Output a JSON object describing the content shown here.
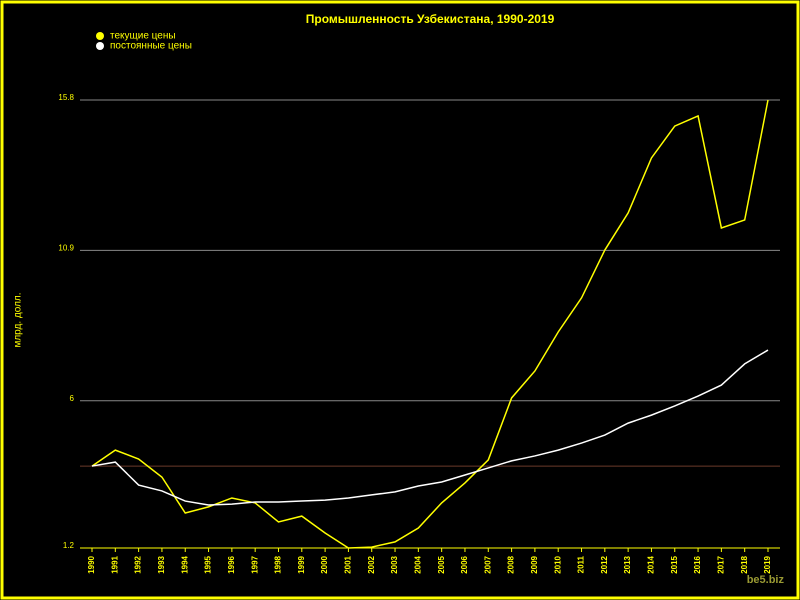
{
  "chart_data": {
    "type": "line",
    "title": "Промышленность Узбекистана, 1990-2019",
    "y_label": "млрд. долл.",
    "watermark": "be5.biz",
    "categories": [
      "1990",
      "1991",
      "1992",
      "1993",
      "1994",
      "1995",
      "1996",
      "1997",
      "1998",
      "1999",
      "2000",
      "2001",
      "2002",
      "2003",
      "2004",
      "2005",
      "2006",
      "2007",
      "2008",
      "2009",
      "2010",
      "2011",
      "2012",
      "2013",
      "2014",
      "2015",
      "2016",
      "2017",
      "2018",
      "2019"
    ],
    "series": [
      {
        "name": "текущие цены",
        "color": "#ffff00",
        "values": [
          3.87,
          4.39,
          4.1,
          3.51,
          2.34,
          2.54,
          2.83,
          2.67,
          2.05,
          2.24,
          1.69,
          1.2,
          1.23,
          1.4,
          1.85,
          2.67,
          3.32,
          4.07,
          6.09,
          6.97,
          8.24,
          9.35,
          10.91,
          12.12,
          13.91,
          14.95,
          15.28,
          11.63,
          11.89,
          15.8
        ]
      },
      {
        "name": "постоянные цены",
        "color": "#ffffff",
        "values": [
          3.87,
          4.0,
          3.25,
          3.06,
          2.73,
          2.6,
          2.63,
          2.7,
          2.7,
          2.73,
          2.76,
          2.83,
          2.93,
          3.03,
          3.22,
          3.35,
          3.58,
          3.81,
          4.04,
          4.2,
          4.39,
          4.62,
          4.88,
          5.27,
          5.53,
          5.83,
          6.15,
          6.51,
          7.2,
          7.65
        ]
      }
    ],
    "reference_line": 3.87,
    "ylim": [
      1.2,
      15.8
    ],
    "yticks": [
      1.2,
      6,
      10.9,
      15.8
    ],
    "grid": true,
    "legend": "top-left"
  }
}
